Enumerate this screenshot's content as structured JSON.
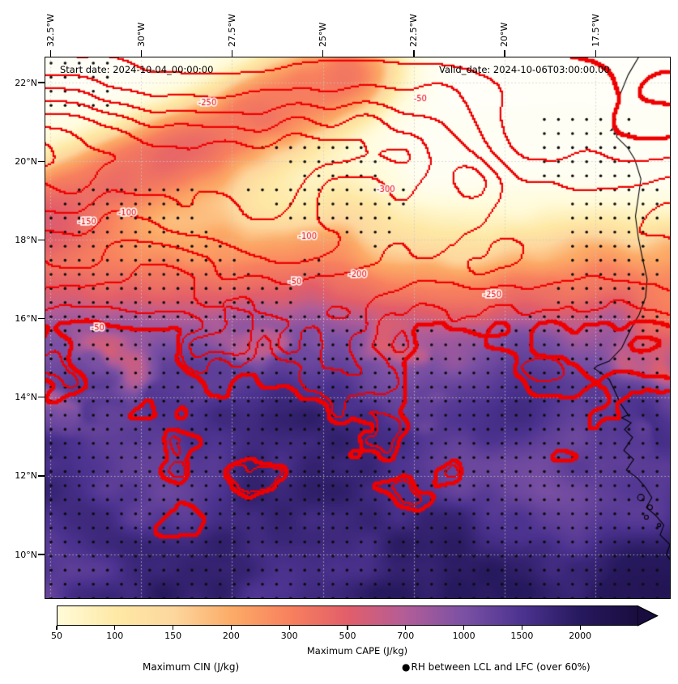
{
  "figure": {
    "start_date": "Start date: 2024-10-04_00:00:00",
    "valid_date": "Valid_date: 2024-10-06T03:00:00.00"
  },
  "chart_data": {
    "type": "heatmap",
    "description": "Filled contour map of maximum CAPE (shaded), maximum CIN (red contours) and stippling where RH between LCL and LFC exceeds 60%",
    "x_axis": {
      "tick_labels": [
        "32.5°W",
        "30°W",
        "27.5°W",
        "25°W",
        "22.5°W",
        "20°W",
        "17.5°W"
      ],
      "tick_values_deg_east": [
        -32.5,
        -30,
        -27.5,
        -25,
        -22.5,
        -20,
        -17.5
      ],
      "range_deg_east": [
        -32.66,
        -15.43
      ]
    },
    "y_axis": {
      "tick_labels": [
        "22°N",
        "20°N",
        "18°N",
        "16°N",
        "14°N",
        "12°N",
        "10°N"
      ],
      "tick_values_deg_north": [
        22,
        20,
        18,
        16,
        14,
        12,
        10
      ],
      "range_deg_north": [
        22.66,
        8.87
      ]
    },
    "colorbar": {
      "label": "Maximum CAPE (J/kg)",
      "tick_labels": [
        "50",
        "100",
        "150",
        "200",
        "300",
        "500",
        "700",
        "1000",
        "1500",
        "2000"
      ],
      "tick_values": [
        50,
        100,
        150,
        200,
        300,
        500,
        700,
        1000,
        1500,
        2000
      ],
      "colors": [
        "#fffbd9",
        "#fee9a6",
        "#fdd79e",
        "#fcab67",
        "#f8815e",
        "#e25e6a",
        "#b25d98",
        "#7b51a4",
        "#4c3390",
        "#27195e"
      ],
      "under_color": "#ffffff",
      "over_color": "#190d3f",
      "extend": "max"
    },
    "cin_contours": {
      "legend_label": "Maximum CIN (J/kg)",
      "color": "#ee0000",
      "levels": [
        -350,
        -300,
        -250,
        -200,
        -150,
        -100,
        -50,
        -25
      ],
      "outer_thick_level": -25,
      "inline_labels": [
        {
          "text": "-250",
          "x": 0.26,
          "y": 0.085
        },
        {
          "text": "-50",
          "x": 0.6,
          "y": 0.078
        },
        {
          "text": "-150",
          "x": 0.068,
          "y": 0.305
        },
        {
          "text": "-100",
          "x": 0.132,
          "y": 0.288
        },
        {
          "text": "-300",
          "x": 0.545,
          "y": 0.245
        },
        {
          "text": "-100",
          "x": 0.42,
          "y": 0.332
        },
        {
          "text": "-50",
          "x": 0.085,
          "y": 0.5
        },
        {
          "text": "-50",
          "x": 0.4,
          "y": 0.415
        },
        {
          "text": "-200",
          "x": 0.5,
          "y": 0.402
        },
        {
          "text": "-250",
          "x": 0.715,
          "y": 0.44
        }
      ]
    },
    "stippling": {
      "marker": "●",
      "legend_label": "RH between LCL and LFC (over 60%)"
    }
  }
}
